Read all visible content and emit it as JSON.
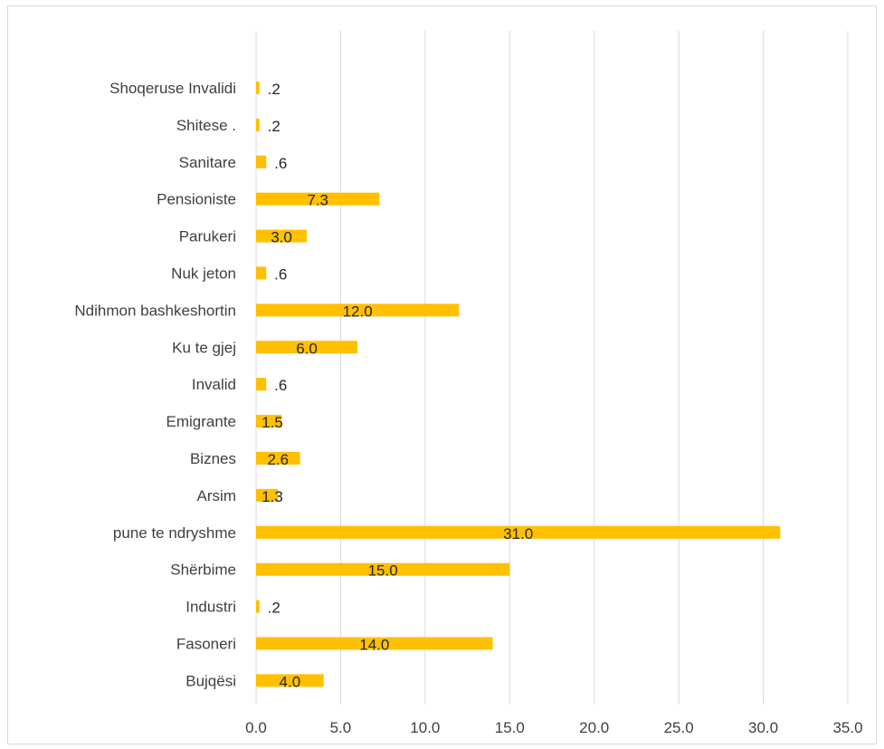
{
  "chart_data": {
    "type": "bar",
    "orientation": "horizontal",
    "title": "",
    "xlabel": "",
    "ylabel": "",
    "categories": [
      "Shoqeruse Invalidi",
      "Shitese .",
      "Sanitare",
      "Pensioniste",
      "Parukeri",
      "Nuk jeton",
      "Ndihmon bashkeshortin",
      "Ku te gjej",
      "Invalid",
      "Emigrante",
      "Biznes",
      "Arsim",
      "pune te ndryshme",
      "Shërbime",
      "Industri",
      "Fasoneri",
      "Bujqësi"
    ],
    "values": [
      0.2,
      0.2,
      0.6,
      7.3,
      3.0,
      0.6,
      12.0,
      6.0,
      0.6,
      1.5,
      2.6,
      1.3,
      31.0,
      15.0,
      0.2,
      14.0,
      4.0
    ],
    "value_labels": [
      ".2",
      ".2",
      ".6",
      "7.3",
      "3.0",
      ".6",
      "12.0",
      "6.0",
      ".6",
      "1.5",
      "2.6",
      "1.3",
      "31.0",
      "15.0",
      ".2",
      "14.0",
      "4.0"
    ],
    "xlim": [
      0,
      35
    ],
    "x_ticks": [
      "0.0",
      "5.0",
      "10.0",
      "15.0",
      "20.0",
      "25.0",
      "30.0",
      "35.0"
    ],
    "grid": "vertical",
    "legend": "none",
    "colors": {
      "bar": "#ffc000",
      "grid": "#d9d9d9",
      "text": "#404040",
      "title": "#1f3b7a"
    }
  }
}
